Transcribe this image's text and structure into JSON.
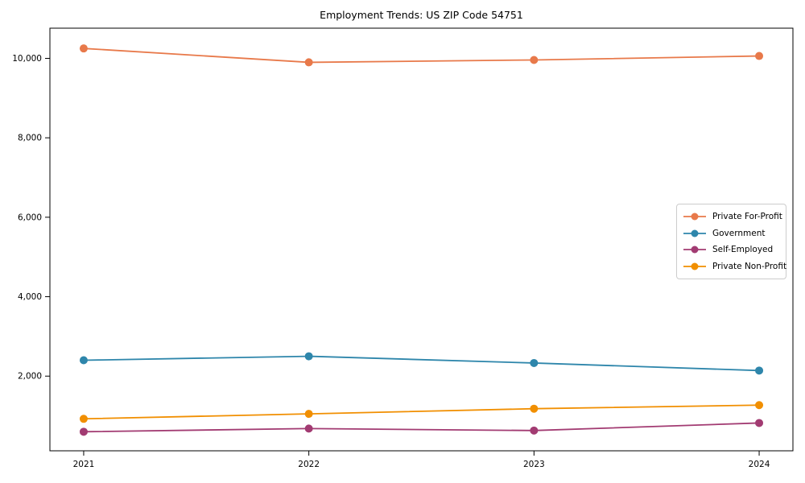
{
  "chart_data": {
    "type": "line",
    "title": "Employment Trends: US ZIP Code 54751",
    "x": [
      2021,
      2022,
      2023,
      2024
    ],
    "categories": [
      "2021",
      "2022",
      "2023",
      "2024"
    ],
    "series": [
      {
        "name": "Private For-Profit",
        "color": "#e8794a",
        "values": [
          10250,
          9900,
          9960,
          10060
        ]
      },
      {
        "name": "Government",
        "color": "#2e86ab",
        "values": [
          2400,
          2500,
          2330,
          2140
        ]
      },
      {
        "name": "Self-Employed",
        "color": "#a23b72",
        "values": [
          600,
          680,
          630,
          820
        ]
      },
      {
        "name": "Private Non-Profit",
        "color": "#f18f01",
        "values": [
          925,
          1050,
          1180,
          1270
        ]
      }
    ],
    "yticks": [
      2000,
      4000,
      6000,
      8000,
      10000
    ],
    "ytick_labels": [
      "2,000",
      "4,000",
      "6,000",
      "8,000",
      "10,000"
    ],
    "xlim": [
      2020.85,
      2024.15
    ],
    "ylim": [
      120,
      10760
    ],
    "grid": false,
    "legend_position": "center right",
    "axis_color": "#000000",
    "marker": "circle"
  }
}
